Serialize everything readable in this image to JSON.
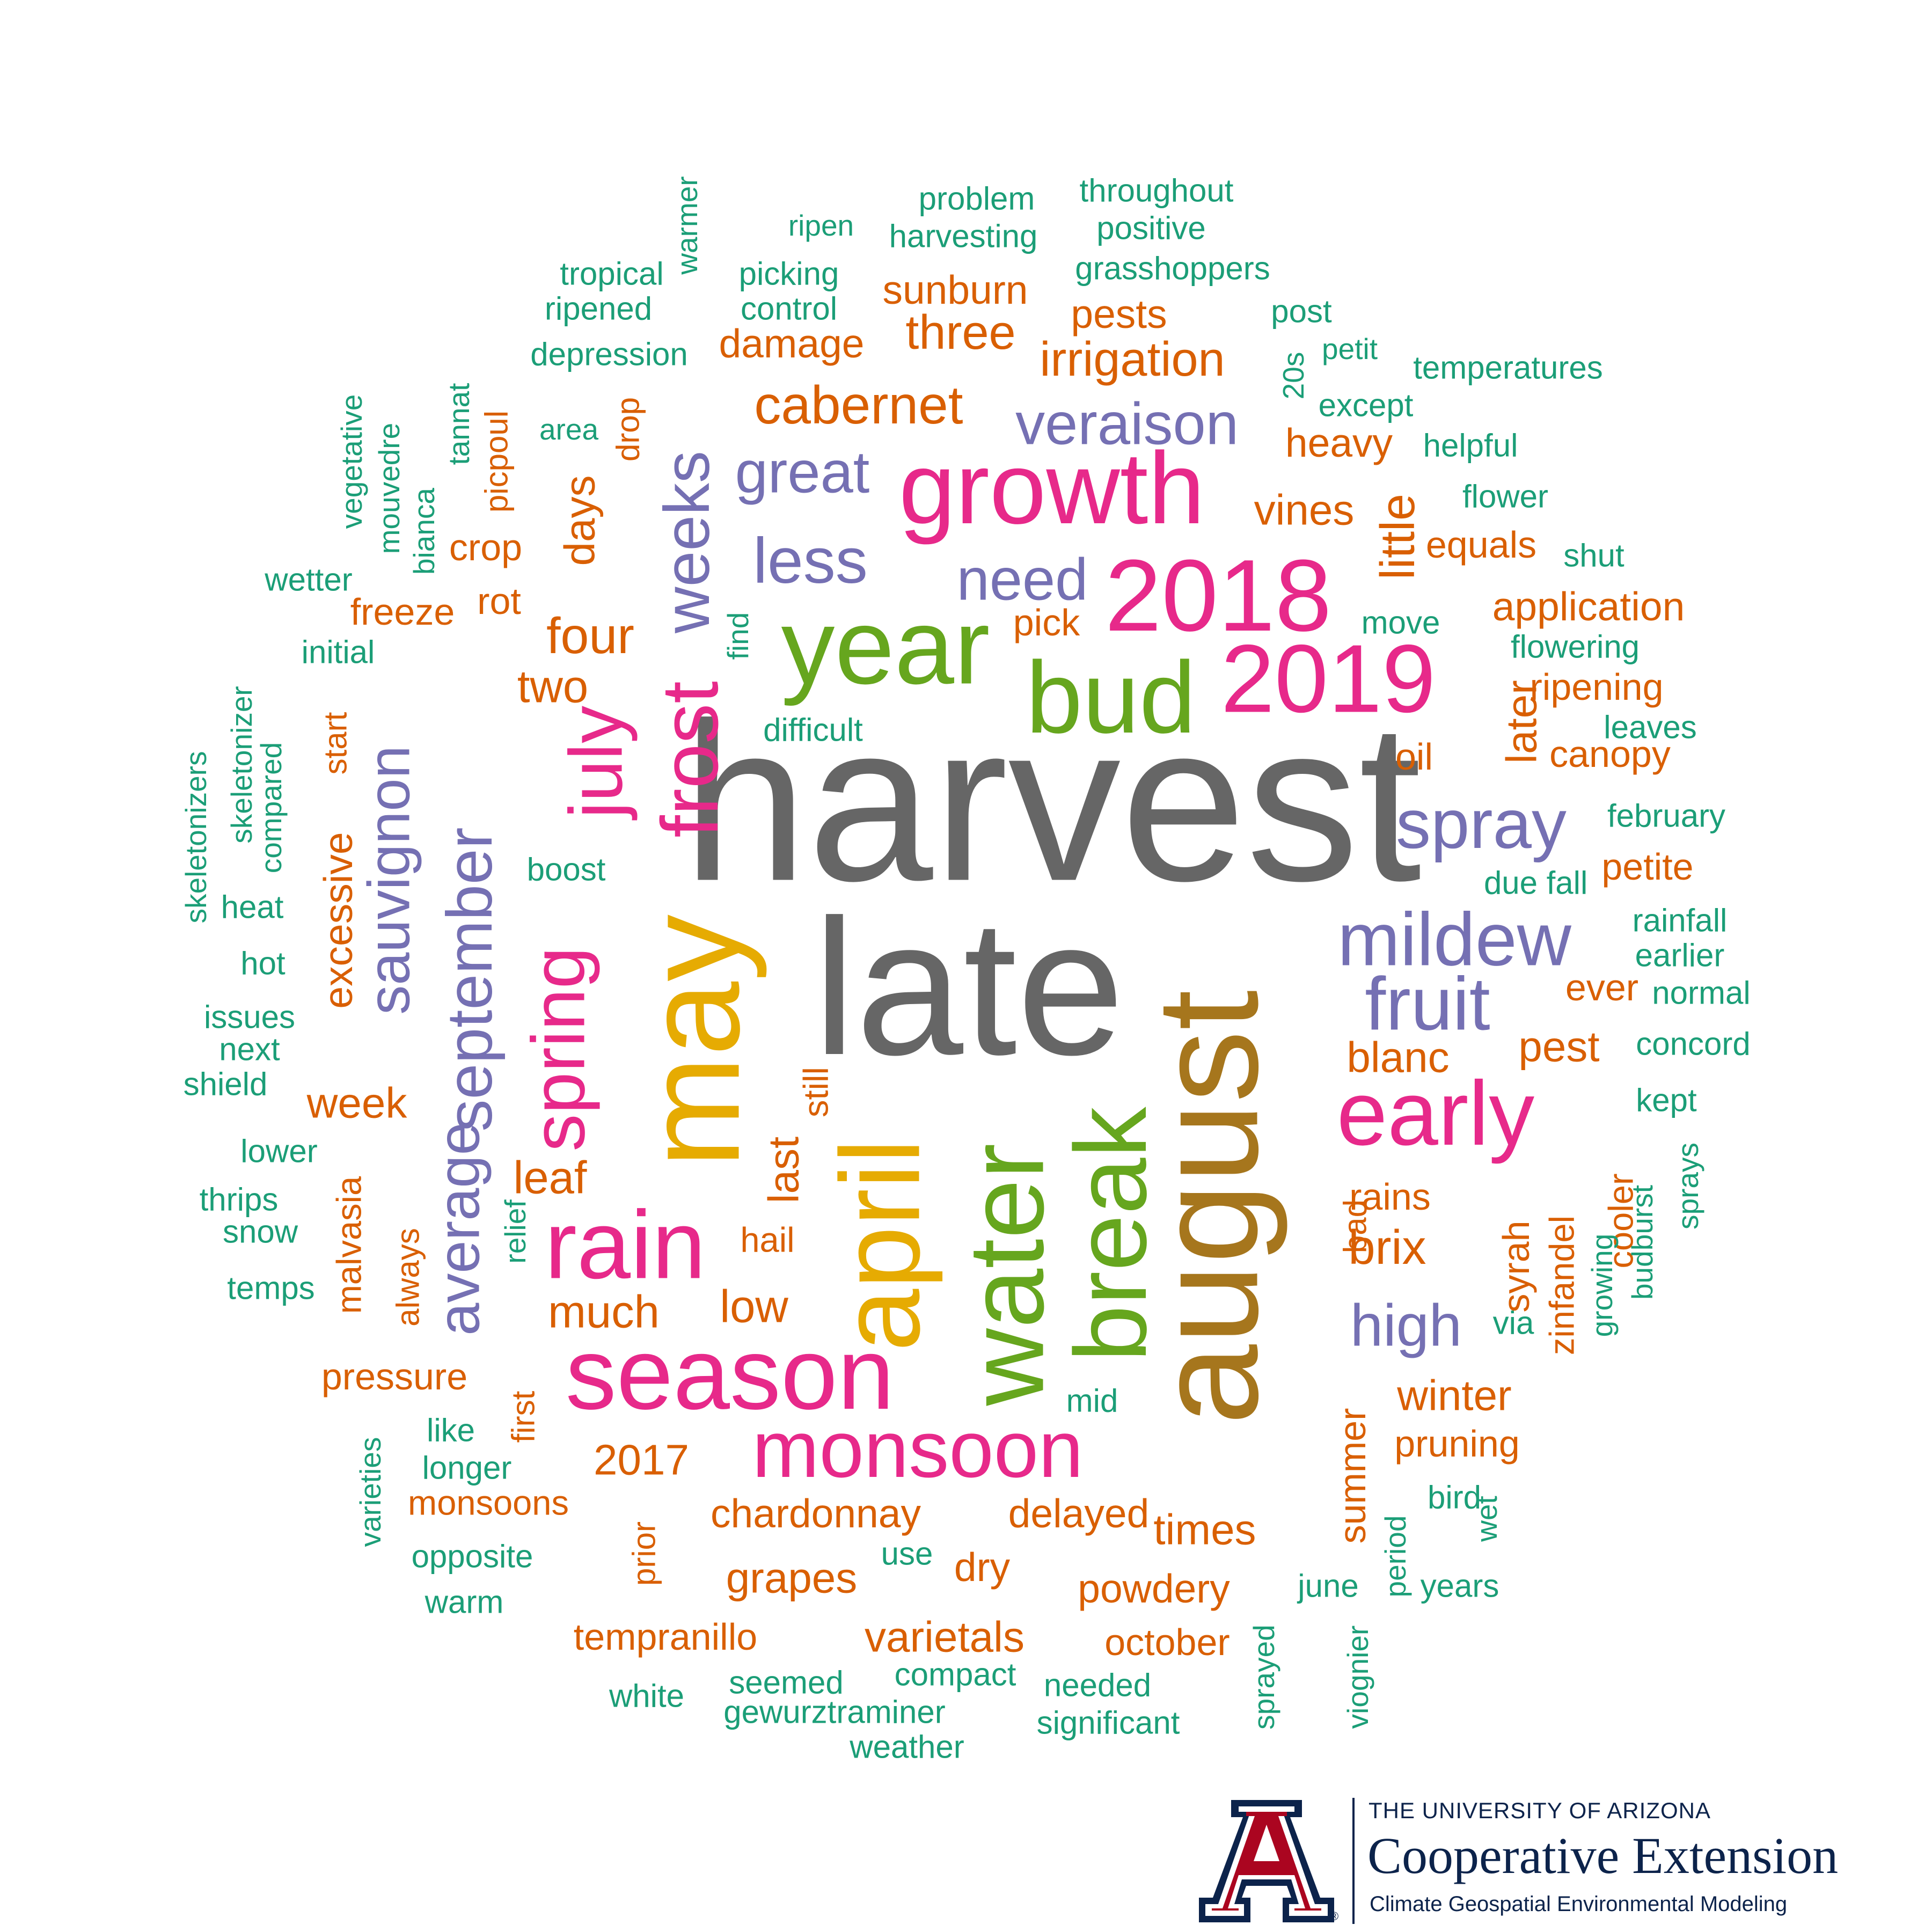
{
  "colors": {
    "teal": "#1b9e77",
    "orange": "#d95f02",
    "purple": "#7570b3",
    "pink": "#e7298a",
    "green": "#66a61e",
    "gold": "#e6ab02",
    "brown": "#a6761d",
    "gray": "#666666",
    "navy": "#0c234b",
    "red": "#ab0520"
  },
  "words": [
    {
      "text": "harvest",
      "color": "gray"
    },
    {
      "text": "late",
      "color": "gray"
    },
    {
      "text": "august",
      "color": "brown"
    },
    {
      "text": "may",
      "color": "gold"
    },
    {
      "text": "april",
      "color": "gold"
    },
    {
      "text": "water",
      "color": "green"
    },
    {
      "text": "year",
      "color": "green"
    },
    {
      "text": "bud",
      "color": "green"
    },
    {
      "text": "break",
      "color": "green"
    },
    {
      "text": "growth",
      "color": "pink"
    },
    {
      "text": "2018",
      "color": "pink"
    },
    {
      "text": "2019",
      "color": "pink"
    },
    {
      "text": "season",
      "color": "pink"
    },
    {
      "text": "rain",
      "color": "pink"
    },
    {
      "text": "frost",
      "color": "pink"
    },
    {
      "text": "early",
      "color": "pink"
    },
    {
      "text": "monsoon",
      "color": "pink"
    },
    {
      "text": "spring",
      "color": "pink"
    },
    {
      "text": "july",
      "color": "pink"
    },
    {
      "text": "mildew",
      "color": "purple"
    },
    {
      "text": "fruit",
      "color": "purple"
    },
    {
      "text": "spray",
      "color": "purple"
    },
    {
      "text": "veraison",
      "color": "purple"
    },
    {
      "text": "great",
      "color": "purple"
    },
    {
      "text": "less",
      "color": "purple"
    },
    {
      "text": "need",
      "color": "purple"
    },
    {
      "text": "weeks",
      "color": "purple"
    },
    {
      "text": "september",
      "color": "purple"
    },
    {
      "text": "sauvignon",
      "color": "purple"
    },
    {
      "text": "average",
      "color": "purple"
    },
    {
      "text": "high",
      "color": "purple"
    },
    {
      "text": "cabernet",
      "color": "orange"
    },
    {
      "text": "irrigation",
      "color": "orange"
    },
    {
      "text": "three",
      "color": "orange"
    },
    {
      "text": "sunburn",
      "color": "orange"
    },
    {
      "text": "damage",
      "color": "orange"
    },
    {
      "text": "pests",
      "color": "orange"
    },
    {
      "text": "heavy",
      "color": "orange"
    },
    {
      "text": "vines",
      "color": "orange"
    },
    {
      "text": "little",
      "color": "orange"
    },
    {
      "text": "equals",
      "color": "orange"
    },
    {
      "text": "application",
      "color": "orange"
    },
    {
      "text": "ripening",
      "color": "orange"
    },
    {
      "text": "canopy",
      "color": "orange"
    },
    {
      "text": "later",
      "color": "orange"
    },
    {
      "text": "oil",
      "color": "orange"
    },
    {
      "text": "pick",
      "color": "orange"
    },
    {
      "text": "petite",
      "color": "orange"
    },
    {
      "text": "ever",
      "color": "orange"
    },
    {
      "text": "pest",
      "color": "orange"
    },
    {
      "text": "blanc",
      "color": "orange"
    },
    {
      "text": "days",
      "color": "orange"
    },
    {
      "text": "drop",
      "color": "orange"
    },
    {
      "text": "four",
      "color": "orange"
    },
    {
      "text": "two",
      "color": "orange"
    },
    {
      "text": "crop",
      "color": "orange"
    },
    {
      "text": "rot",
      "color": "orange"
    },
    {
      "text": "freeze",
      "color": "orange"
    },
    {
      "text": "picpoul",
      "color": "orange"
    },
    {
      "text": "start",
      "color": "orange"
    },
    {
      "text": "excessive",
      "color": "orange"
    },
    {
      "text": "week",
      "color": "orange"
    },
    {
      "text": "leaf",
      "color": "orange"
    },
    {
      "text": "last",
      "color": "orange"
    },
    {
      "text": "still",
      "color": "orange"
    },
    {
      "text": "hail",
      "color": "orange"
    },
    {
      "text": "much",
      "color": "orange"
    },
    {
      "text": "low",
      "color": "orange"
    },
    {
      "text": "malvasia",
      "color": "orange"
    },
    {
      "text": "always",
      "color": "orange"
    },
    {
      "text": "brix",
      "color": "orange"
    },
    {
      "text": "rains",
      "color": "orange"
    },
    {
      "text": "bad",
      "color": "orange"
    },
    {
      "text": "syrah",
      "color": "orange"
    },
    {
      "text": "zinfandel",
      "color": "orange"
    },
    {
      "text": "cooler",
      "color": "orange"
    },
    {
      "text": "winter",
      "color": "orange"
    },
    {
      "text": "pruning",
      "color": "orange"
    },
    {
      "text": "summer",
      "color": "orange"
    },
    {
      "text": "pressure",
      "color": "orange"
    },
    {
      "text": "first",
      "color": "orange"
    },
    {
      "text": "2017",
      "color": "orange"
    },
    {
      "text": "monsoons",
      "color": "orange"
    },
    {
      "text": "prior",
      "color": "orange"
    },
    {
      "text": "chardonnay",
      "color": "orange"
    },
    {
      "text": "delayed",
      "color": "orange"
    },
    {
      "text": "times",
      "color": "orange"
    },
    {
      "text": "grapes",
      "color": "orange"
    },
    {
      "text": "dry",
      "color": "orange"
    },
    {
      "text": "powdery",
      "color": "orange"
    },
    {
      "text": "varietals",
      "color": "orange"
    },
    {
      "text": "tempranillo",
      "color": "orange"
    },
    {
      "text": "october",
      "color": "orange"
    },
    {
      "text": "throughout",
      "color": "teal"
    },
    {
      "text": "problem",
      "color": "teal"
    },
    {
      "text": "warmer",
      "color": "teal"
    },
    {
      "text": "ripen",
      "color": "teal"
    },
    {
      "text": "harvesting",
      "color": "teal"
    },
    {
      "text": "positive",
      "color": "teal"
    },
    {
      "text": "tropical",
      "color": "teal"
    },
    {
      "text": "picking",
      "color": "teal"
    },
    {
      "text": "grasshoppers",
      "color": "teal"
    },
    {
      "text": "ripened",
      "color": "teal"
    },
    {
      "text": "control",
      "color": "teal"
    },
    {
      "text": "post",
      "color": "teal"
    },
    {
      "text": "depression",
      "color": "teal"
    },
    {
      "text": "petit",
      "color": "teal"
    },
    {
      "text": "temperatures",
      "color": "teal"
    },
    {
      "text": "20s",
      "color": "teal"
    },
    {
      "text": "except",
      "color": "teal"
    },
    {
      "text": "area",
      "color": "teal"
    },
    {
      "text": "tannat",
      "color": "teal"
    },
    {
      "text": "vegetative",
      "color": "teal"
    },
    {
      "text": "mouvedre",
      "color": "teal"
    },
    {
      "text": "helpful",
      "color": "teal"
    },
    {
      "text": "flower",
      "color": "teal"
    },
    {
      "text": "bianca",
      "color": "teal"
    },
    {
      "text": "wetter",
      "color": "teal"
    },
    {
      "text": "shut",
      "color": "teal"
    },
    {
      "text": "move",
      "color": "teal"
    },
    {
      "text": "find",
      "color": "teal"
    },
    {
      "text": "initial",
      "color": "teal"
    },
    {
      "text": "flowering",
      "color": "teal"
    },
    {
      "text": "skeletonizer",
      "color": "teal"
    },
    {
      "text": "difficult",
      "color": "teal"
    },
    {
      "text": "leaves",
      "color": "teal"
    },
    {
      "text": "compared",
      "color": "teal"
    },
    {
      "text": "skeletonizers",
      "color": "teal"
    },
    {
      "text": "february",
      "color": "teal"
    },
    {
      "text": "boost",
      "color": "teal"
    },
    {
      "text": "heat",
      "color": "teal"
    },
    {
      "text": "due",
      "color": "teal"
    },
    {
      "text": "fall",
      "color": "teal"
    },
    {
      "text": "rainfall",
      "color": "teal"
    },
    {
      "text": "hot",
      "color": "teal"
    },
    {
      "text": "earlier",
      "color": "teal"
    },
    {
      "text": "normal",
      "color": "teal"
    },
    {
      "text": "issues",
      "color": "teal"
    },
    {
      "text": "next",
      "color": "teal"
    },
    {
      "text": "concord",
      "color": "teal"
    },
    {
      "text": "shield",
      "color": "teal"
    },
    {
      "text": "kept",
      "color": "teal"
    },
    {
      "text": "lower",
      "color": "teal"
    },
    {
      "text": "thrips",
      "color": "teal"
    },
    {
      "text": "snow",
      "color": "teal"
    },
    {
      "text": "relief",
      "color": "teal"
    },
    {
      "text": "sprays",
      "color": "teal"
    },
    {
      "text": "budburst",
      "color": "teal"
    },
    {
      "text": "growing",
      "color": "teal"
    },
    {
      "text": "temps",
      "color": "teal"
    },
    {
      "text": "via",
      "color": "teal"
    },
    {
      "text": "mid",
      "color": "teal"
    },
    {
      "text": "like",
      "color": "teal"
    },
    {
      "text": "longer",
      "color": "teal"
    },
    {
      "text": "varieties",
      "color": "teal"
    },
    {
      "text": "bird",
      "color": "teal"
    },
    {
      "text": "wet",
      "color": "teal"
    },
    {
      "text": "opposite",
      "color": "teal"
    },
    {
      "text": "use",
      "color": "teal"
    },
    {
      "text": "period",
      "color": "teal"
    },
    {
      "text": "june",
      "color": "teal"
    },
    {
      "text": "years",
      "color": "teal"
    },
    {
      "text": "warm",
      "color": "teal"
    },
    {
      "text": "viognier",
      "color": "teal"
    },
    {
      "text": "sprayed",
      "color": "teal"
    },
    {
      "text": "white",
      "color": "teal"
    },
    {
      "text": "seemed",
      "color": "teal"
    },
    {
      "text": "compact",
      "color": "teal"
    },
    {
      "text": "needed",
      "color": "teal"
    },
    {
      "text": "gewurztraminer",
      "color": "teal"
    },
    {
      "text": "significant",
      "color": "teal"
    },
    {
      "text": "weather",
      "color": "teal"
    }
  ],
  "logo": {
    "line1": "THE UNIVERSITY OF ARIZONA",
    "line2": "Cooperative Extension",
    "line3": "Climate Geospatial Environmental Modeling"
  }
}
